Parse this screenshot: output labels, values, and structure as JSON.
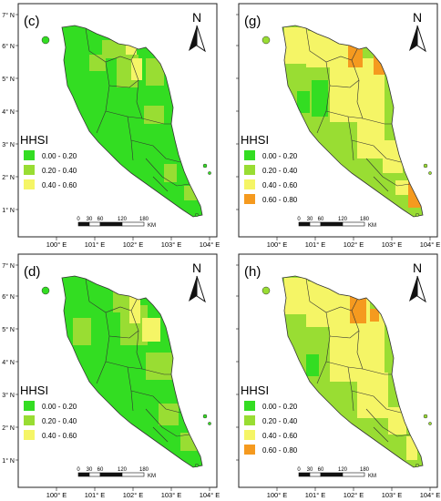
{
  "colors": {
    "green_bright": "#33dd22",
    "green_light": "#99dd33",
    "yellow": "#f5f566",
    "orange": "#f59a1f",
    "frame": "#222222",
    "boundary": "#333333"
  },
  "legend": {
    "title": "HHSI",
    "classes": [
      {
        "label": "0.00 - 0.20",
        "color": "#33dd22"
      },
      {
        "label": "0.20 - 0.40",
        "color": "#99dd33"
      },
      {
        "label": "0.40 - 0.60",
        "color": "#f5f566"
      },
      {
        "label": "0.60 - 0.80",
        "color": "#f59a1f"
      }
    ]
  },
  "north_arrow": {
    "label": "N",
    "icon": "north-arrow-icon"
  },
  "scale_bar": {
    "ticks": [
      "0",
      "30",
      "60",
      "120",
      "180"
    ],
    "unit": "KM"
  },
  "longitude_labels": [
    "100° E",
    "101° E",
    "102° E",
    "103° E",
    "104° E"
  ],
  "latitude_labels": [
    "7° N",
    "6° N",
    "5° N",
    "4° N",
    "3° N",
    "2° N",
    "1° N"
  ],
  "panels": [
    {
      "id": "c",
      "label": "(c)",
      "base_color": "#33dd22",
      "legend_count": 3,
      "show_lat": true
    },
    {
      "id": "g",
      "label": "(g)",
      "base_color": "#99dd33",
      "legend_count": 4,
      "show_lat": false
    },
    {
      "id": "d",
      "label": "(d)",
      "base_color": "#33dd22",
      "legend_count": 3,
      "show_lat": true
    },
    {
      "id": "h",
      "label": "(h)",
      "base_color": "#99dd33",
      "legend_count": 4,
      "show_lat": false
    }
  ]
}
